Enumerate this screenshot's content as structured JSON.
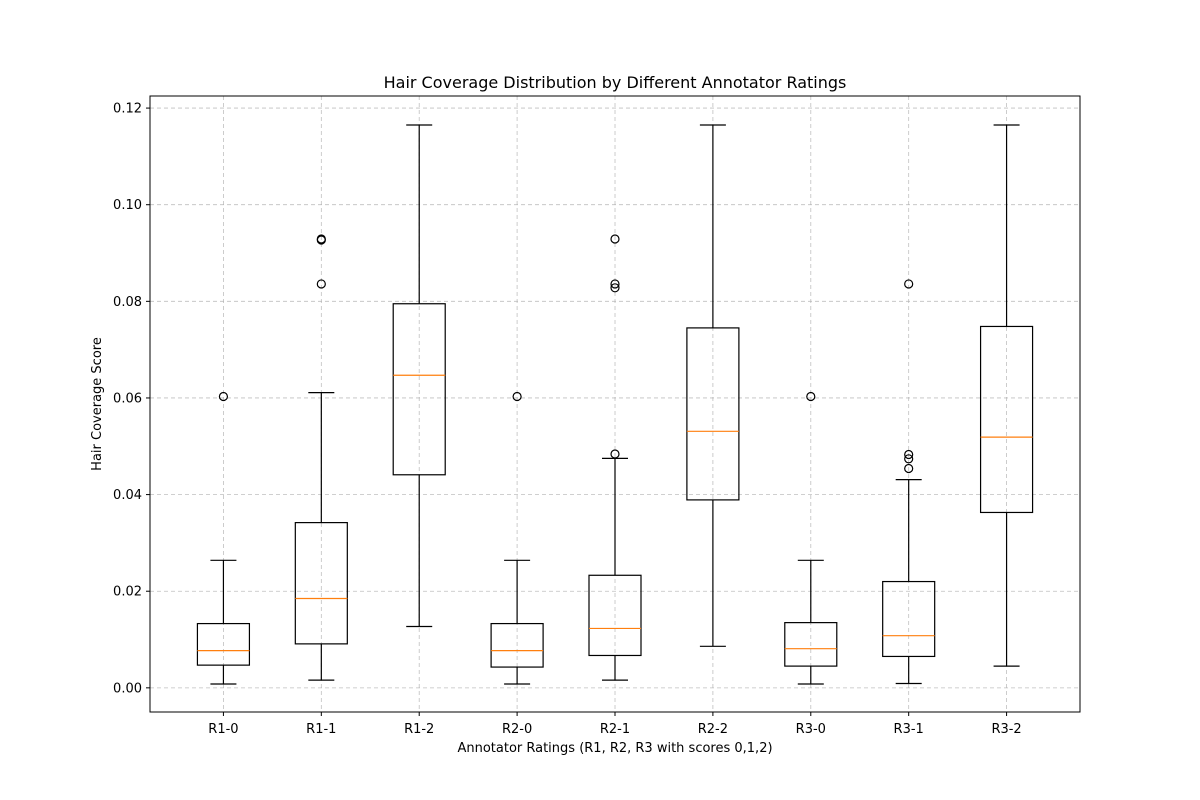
{
  "chart_data": {
    "type": "box",
    "title": "Hair Coverage Distribution by Different Annotator Ratings",
    "xlabel": "Annotator Ratings (R1, R2, R3 with scores 0,1,2)",
    "ylabel": "Hair Coverage Score",
    "ylim": [
      -0.005,
      0.1225
    ],
    "yticks": [
      "0.00",
      "0.02",
      "0.04",
      "0.06",
      "0.08",
      "0.10",
      "0.12"
    ],
    "grid": true,
    "median_color": "#ff7f0e",
    "categories": [
      "R1-0",
      "R1-1",
      "R1-2",
      "R2-0",
      "R2-1",
      "R2-2",
      "R3-0",
      "R3-1",
      "R3-2"
    ],
    "boxes": [
      {
        "min": 0.0008,
        "q1": 0.0047,
        "median": 0.0077,
        "q3": 0.0133,
        "max": 0.0264,
        "fliers": [
          0.0603
        ]
      },
      {
        "min": 0.0016,
        "q1": 0.0091,
        "median": 0.0185,
        "q3": 0.0342,
        "max": 0.0611,
        "fliers": [
          0.0836,
          0.0927,
          0.0929
        ]
      },
      {
        "min": 0.0127,
        "q1": 0.0441,
        "median": 0.0647,
        "q3": 0.0795,
        "max": 0.1165,
        "fliers": []
      },
      {
        "min": 0.0008,
        "q1": 0.0043,
        "median": 0.0077,
        "q3": 0.0133,
        "max": 0.0264,
        "fliers": [
          0.0603
        ]
      },
      {
        "min": 0.0016,
        "q1": 0.0067,
        "median": 0.0123,
        "q3": 0.0233,
        "max": 0.0475,
        "fliers": [
          0.0484,
          0.0828,
          0.0836,
          0.0929
        ]
      },
      {
        "min": 0.0086,
        "q1": 0.0389,
        "median": 0.0531,
        "q3": 0.0745,
        "max": 0.1165,
        "fliers": []
      },
      {
        "min": 0.0008,
        "q1": 0.0045,
        "median": 0.0081,
        "q3": 0.0135,
        "max": 0.0264,
        "fliers": [
          0.0603
        ]
      },
      {
        "min": 0.0009,
        "q1": 0.0065,
        "median": 0.0108,
        "q3": 0.022,
        "max": 0.0431,
        "fliers": [
          0.0454,
          0.0474,
          0.0483,
          0.0836
        ]
      },
      {
        "min": 0.0045,
        "q1": 0.0363,
        "median": 0.0519,
        "q3": 0.0748,
        "max": 0.1165,
        "fliers": []
      }
    ]
  }
}
